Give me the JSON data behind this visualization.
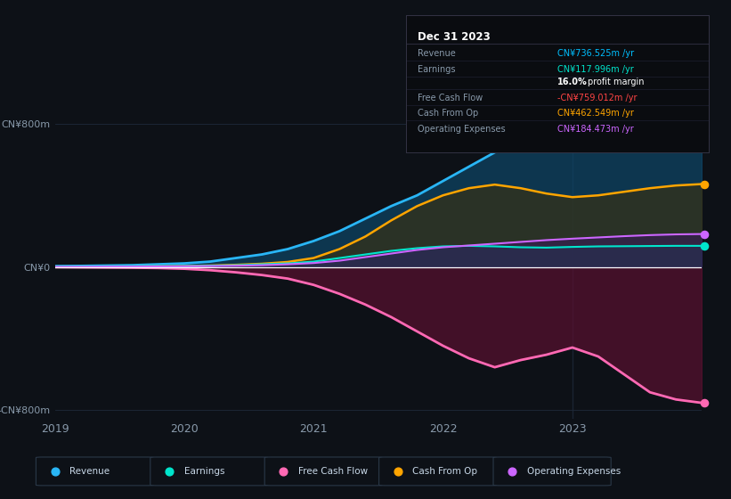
{
  "bg_color": "#0d1117",
  "plot_bg_color": "#0d1117",
  "title_box": {
    "date": "Dec 31 2023",
    "rows": [
      {
        "label": "Revenue",
        "value": "CN¥736.525m /yr",
        "value_color": "#00bfff"
      },
      {
        "label": "Earnings",
        "value": "CN¥117.996m /yr",
        "value_color": "#00e5cc"
      },
      {
        "label": "",
        "value": "16.0% profit margin",
        "value_color": "#ffffff",
        "bold_part": "16.0%"
      },
      {
        "label": "Free Cash Flow",
        "value": "-CN¥759.012m /yr",
        "value_color": "#ff4444"
      },
      {
        "label": "Cash From Op",
        "value": "CN¥462.549m /yr",
        "value_color": "#ffa500"
      },
      {
        "label": "Operating Expenses",
        "value": "CN¥184.473m /yr",
        "value_color": "#cc66ff"
      }
    ]
  },
  "years": [
    2019.0,
    2019.2,
    2019.4,
    2019.6,
    2019.8,
    2020.0,
    2020.2,
    2020.4,
    2020.6,
    2020.8,
    2021.0,
    2021.2,
    2021.4,
    2021.6,
    2021.8,
    2022.0,
    2022.2,
    2022.4,
    2022.6,
    2022.8,
    2023.0,
    2023.2,
    2023.4,
    2023.6,
    2023.8,
    2024.0
  ],
  "revenue": [
    5,
    6,
    8,
    10,
    15,
    20,
    30,
    50,
    70,
    100,
    145,
    200,
    270,
    340,
    400,
    480,
    560,
    640,
    700,
    730,
    760,
    740,
    720,
    710,
    720,
    737
  ],
  "earnings": [
    2,
    2,
    3,
    3,
    4,
    5,
    7,
    10,
    15,
    20,
    30,
    50,
    70,
    90,
    105,
    115,
    118,
    115,
    110,
    108,
    112,
    115,
    116,
    117,
    118,
    118
  ],
  "free_cash": [
    -1,
    -2,
    -3,
    -4,
    -6,
    -10,
    -18,
    -30,
    -45,
    -65,
    -100,
    -150,
    -210,
    -280,
    -360,
    -440,
    -510,
    -560,
    -520,
    -490,
    -450,
    -500,
    -600,
    -700,
    -740,
    -759
  ],
  "cash_from_op": [
    1,
    1,
    2,
    2,
    3,
    5,
    8,
    12,
    18,
    28,
    50,
    100,
    170,
    260,
    340,
    400,
    440,
    460,
    440,
    410,
    390,
    400,
    420,
    440,
    455,
    463
  ],
  "op_expenses": [
    1,
    1,
    2,
    2,
    3,
    4,
    5,
    7,
    10,
    15,
    22,
    35,
    55,
    75,
    95,
    110,
    120,
    130,
    140,
    150,
    158,
    165,
    172,
    178,
    182,
    184
  ],
  "ylim": [
    -850,
    850
  ],
  "yticks": [
    -800,
    0,
    800
  ],
  "ytick_labels": [
    "-CN¥800m",
    "CN¥0",
    "CN¥800m"
  ],
  "xticks": [
    2019,
    2020,
    2021,
    2022,
    2023
  ],
  "legend_items": [
    {
      "label": "Revenue",
      "color": "#29b6f6"
    },
    {
      "label": "Earnings",
      "color": "#00e5cc"
    },
    {
      "label": "Free Cash Flow",
      "color": "#ff69b4"
    },
    {
      "label": "Cash From Op",
      "color": "#ffa500"
    },
    {
      "label": "Operating Expenses",
      "color": "#cc66ff"
    }
  ],
  "colors": {
    "revenue_line": "#29b6f6",
    "revenue_fill": "#0d4a6e",
    "earnings_line": "#00e5cc",
    "earnings_fill": "#0d4a4a",
    "free_cash_line": "#ff69b4",
    "free_cash_fill_neg": "#5a1030",
    "cash_from_op_line": "#ffa500",
    "cash_from_op_fill": "#3a3010",
    "op_expenses_line": "#cc66ff",
    "op_expenses_fill": "#3a1860",
    "zero_line": "#ffffff",
    "grid_line": "#1e2a3a",
    "tick_label": "#8899aa",
    "vline": "#1e2a3a"
  }
}
